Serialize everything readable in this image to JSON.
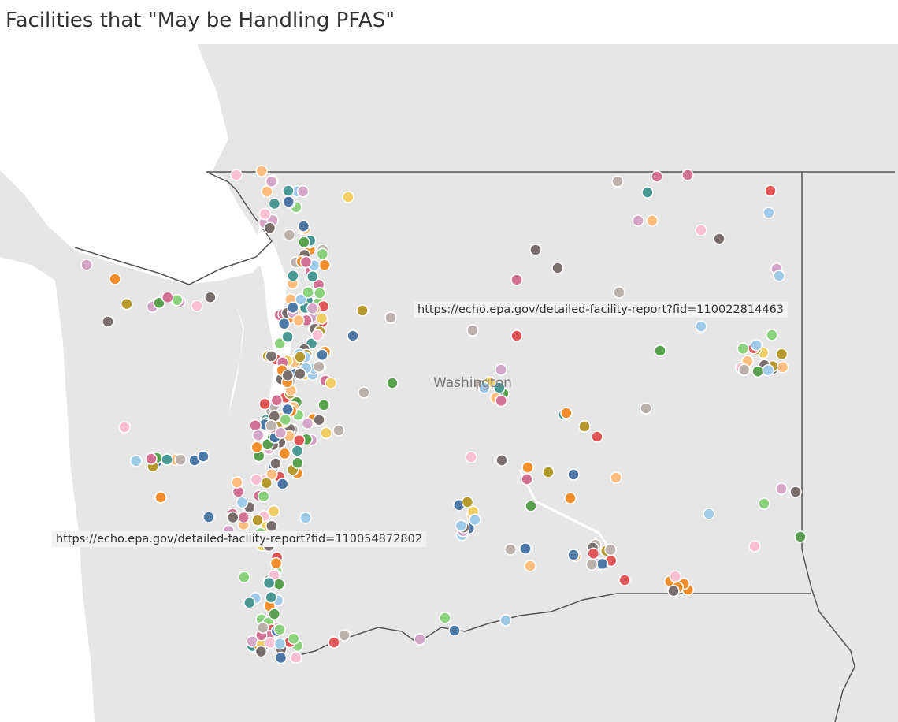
{
  "title": "Facilities that \"May be Handling PFAS\"",
  "map": {
    "state_label": "Washington",
    "tooltip_1": "https://echo.epa.gov/detailed-facility-report?fid=110022814463",
    "tooltip_2": "https://echo.epa.gov/detailed-facility-report?fid=110054872802",
    "colors": {
      "land": "#e6e6e6",
      "water": "#ffffff",
      "border": "#555555",
      "point_outline": "#ffffff",
      "palette": [
        "#ffbe7d",
        "#59a14f",
        "#a0cbe8",
        "#79706e",
        "#d37295",
        "#4e79a7",
        "#bab0ac",
        "#f1ce63",
        "#fabfd2",
        "#f28e2b",
        "#499894",
        "#e15759",
        "#b6992d",
        "#8cd17d",
        "#d4a6c8"
      ]
    }
  }
}
